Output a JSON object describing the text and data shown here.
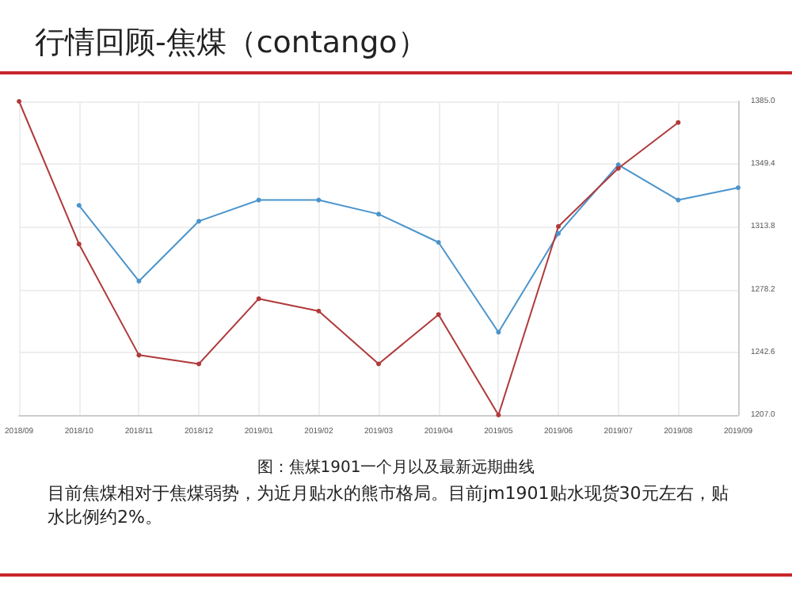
{
  "chart_data": {
    "type": "line",
    "title": "行情回顾-焦煤（contango）",
    "categories": [
      "2018/09",
      "2018/10",
      "2018/11",
      "2018/12",
      "2019/01",
      "2019/02",
      "2019/03",
      "2019/04",
      "2019/05",
      "2019/06",
      "2019/07",
      "2019/08",
      "2019/09"
    ],
    "series": [
      {
        "color": "#4a94cc",
        "values": [
          null,
          1326,
          1283,
          1317,
          1329,
          1329,
          1321,
          1305,
          1254,
          1310,
          1349,
          1329,
          1336
        ]
      },
      {
        "color": "#b0393a",
        "values": [
          1385,
          1304,
          1241,
          1236,
          1273,
          1266,
          1236,
          1264,
          1207,
          1314,
          1347,
          1373,
          null
        ]
      }
    ],
    "ylim": [
      1207.0,
      1385.0
    ],
    "yticks": [
      {
        "value": 1207.0,
        "label": "1207.0"
      },
      {
        "value": 1242.6,
        "label": "1242.6"
      },
      {
        "value": 1278.2,
        "label": "1278.2"
      },
      {
        "value": 1313.8,
        "label": "1313.8"
      },
      {
        "value": 1349.4,
        "label": "1349.4"
      },
      {
        "value": 1385.0,
        "label": "1385.0"
      }
    ],
    "grid": true,
    "marker": "circle",
    "line_style": "solid",
    "annotations": [
      "图：焦煤1901一个月以及最新远期曲线",
      "目前焦煤相对于焦煤弱势，为近月贴水的熊市格局。目前jm1901贴水现货30元左右，贴水比例约2%。"
    ]
  }
}
